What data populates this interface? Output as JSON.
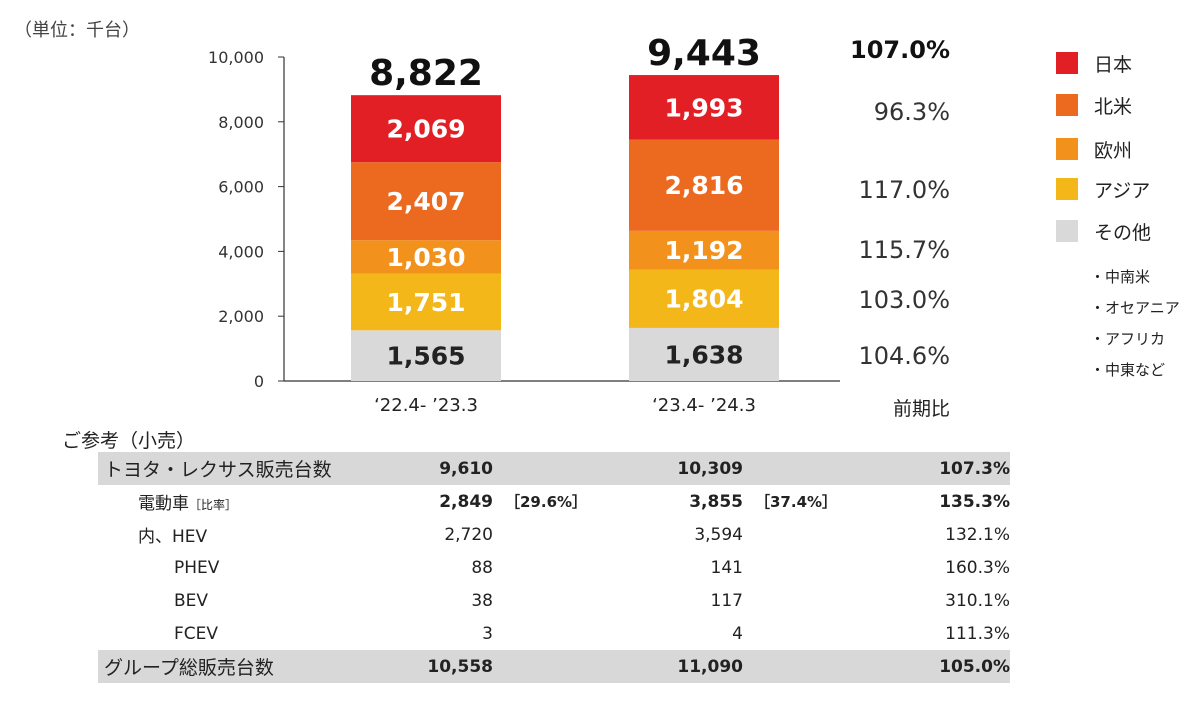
{
  "unit_label": "（単位：千台）",
  "chart_data": {
    "type": "bar",
    "stacked": true,
    "categories": [
      "‘22.4- ’23.3",
      "‘23.4- ’24.3"
    ],
    "series": [
      {
        "name": "その他",
        "values": [
          1565,
          1638
        ],
        "color": "#d9d9d9",
        "label_color": "#222222"
      },
      {
        "name": "アジア",
        "values": [
          1751,
          1804
        ],
        "color": "#f4b719",
        "label_color": "#ffffff"
      },
      {
        "name": "欧州",
        "values": [
          1030,
          1192
        ],
        "color": "#f3911d",
        "label_color": "#ffffff"
      },
      {
        "name": "北米",
        "values": [
          2407,
          2816
        ],
        "color": "#ec6a1f",
        "label_color": "#ffffff"
      },
      {
        "name": "日本",
        "values": [
          2069,
          1993
        ],
        "color": "#e31f26",
        "label_color": "#ffffff"
      }
    ],
    "series_labels": [
      [
        "1,565",
        "1,638"
      ],
      [
        "1,751",
        "1,804"
      ],
      [
        "1,030",
        "1,192"
      ],
      [
        "2,407",
        "2,816"
      ],
      [
        "2,069",
        "1,993"
      ]
    ],
    "totals": [
      8822,
      9443
    ],
    "total_labels": [
      "8,822",
      "9,443"
    ],
    "yticks": [
      "0",
      "2,000",
      "4,000",
      "6,000",
      "8,000",
      "10,000"
    ],
    "ytick_values": [
      0,
      2000,
      4000,
      6000,
      8000,
      10000
    ],
    "ylim": [
      0,
      10000
    ],
    "grid": false,
    "legend_position": "right"
  },
  "yoy": {
    "header": "前期比",
    "total": "107.0%",
    "values": [
      "104.6%",
      "103.0%",
      "115.7%",
      "117.0%",
      "96.3%"
    ]
  },
  "legend": {
    "items": [
      {
        "label": "日本",
        "color": "#e31f26"
      },
      {
        "label": "北米",
        "color": "#ec6a1f"
      },
      {
        "label": "欧州",
        "color": "#f3911d"
      },
      {
        "label": "アジア",
        "color": "#f4b719"
      },
      {
        "label": "その他",
        "color": "#d9d9d9"
      }
    ],
    "notes": [
      "・中南米",
      "・オセアニア",
      "・アフリカ",
      "・中東など"
    ]
  },
  "reference": {
    "title": "ご参考（小売）",
    "rows": [
      {
        "label": "トヨタ・レクサス販売台数",
        "v1": "9,610",
        "b1": "",
        "v2": "10,309",
        "b2": "",
        "ratio": "107.3%"
      },
      {
        "label": "電動車",
        "label_suffix": "［比率］",
        "v1": "2,849",
        "b1": "［29.6%］",
        "v2": "3,855",
        "b2": "［37.4%］",
        "ratio": "135.3%"
      },
      {
        "label": "内、HEV",
        "v1": "2,720",
        "b1": "",
        "v2": "3,594",
        "b2": "",
        "ratio": "132.1%"
      },
      {
        "label": "PHEV",
        "v1": "88",
        "b1": "",
        "v2": "141",
        "b2": "",
        "ratio": "160.3%"
      },
      {
        "label": "BEV",
        "v1": "38",
        "b1": "",
        "v2": "117",
        "b2": "",
        "ratio": "310.1%"
      },
      {
        "label": "FCEV",
        "v1": "3",
        "b1": "",
        "v2": "4",
        "b2": "",
        "ratio": "111.3%"
      },
      {
        "label": "グループ総販売台数",
        "v1": "10,558",
        "b1": "",
        "v2": "11,090",
        "b2": "",
        "ratio": "105.0%"
      }
    ]
  }
}
